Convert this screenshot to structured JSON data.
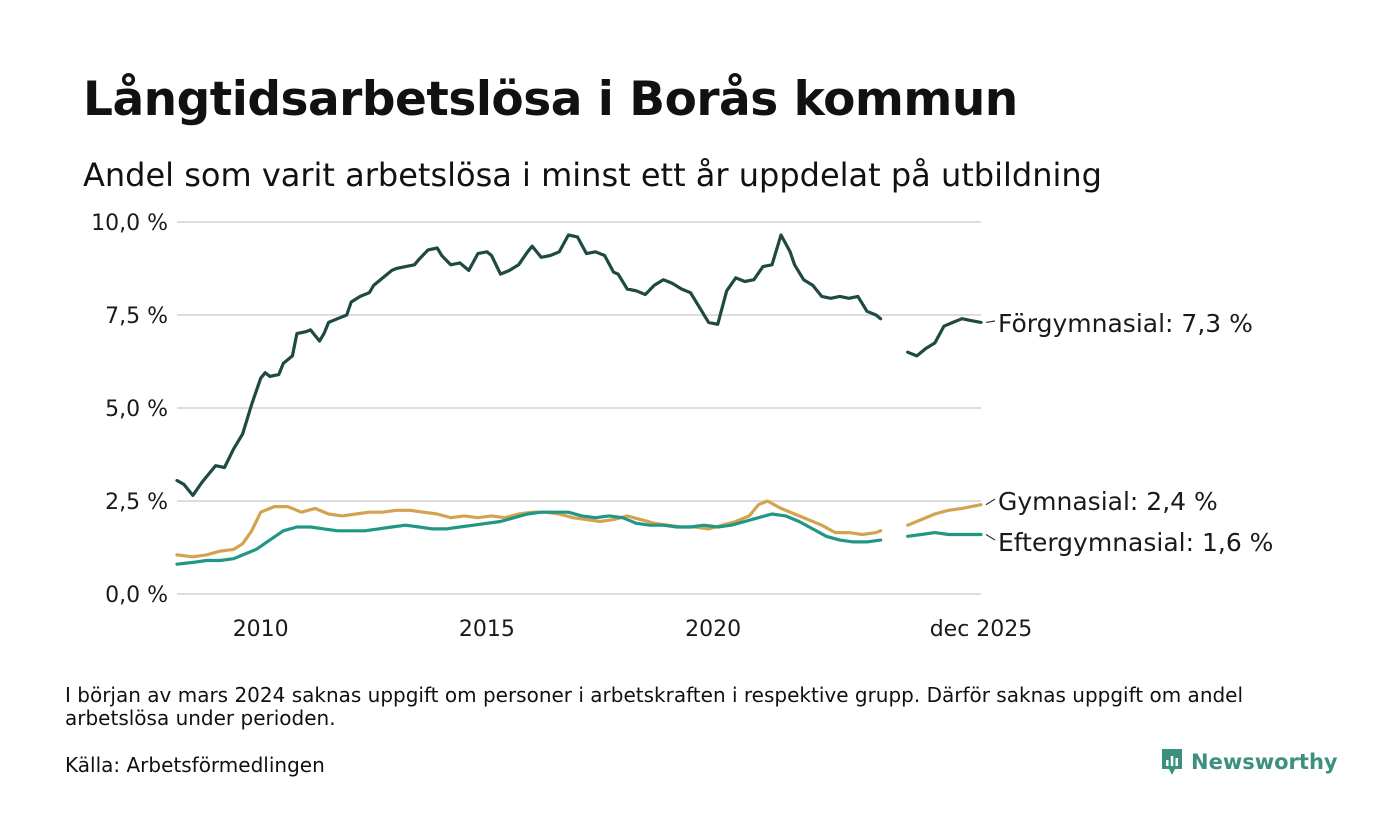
{
  "header": {
    "title": "Långtidsarbetslösa i Borås kommun",
    "subtitle": "Andel som varit arbetslösa i minst ett år uppdelat på utbildning"
  },
  "footer": {
    "note": "I början av mars 2024 saknas uppgift om personer i arbetskraften i respektive grupp. Därför saknas uppgift om andel arbetslösa under perioden.",
    "source": "Källa: Arbetsförmedlingen",
    "brand": "Newsworthy"
  },
  "colors": {
    "forgymnasial": "#1f4a43",
    "gymnasial": "#d3a34f",
    "eftergymnasial": "#1f9784",
    "grid": "#dddddd",
    "brand": "#3d8f80"
  },
  "chart_data": {
    "type": "line",
    "title": "Långtidsarbetslösa i Borås kommun",
    "xlabel": "",
    "ylabel": "",
    "x_unit": "decimal year",
    "xlim": [
      2008.15,
      2025.92
    ],
    "ylim": [
      0,
      10
    ],
    "yticks": [
      0,
      2.5,
      5,
      7.5,
      10
    ],
    "ytick_labels": [
      "0,0 %",
      "2,5 %",
      "5,0 %",
      "7,5 %",
      "10,0 %"
    ],
    "xticks": [
      2010,
      2015,
      2020,
      2025.92
    ],
    "xtick_labels": [
      "2010",
      "2015",
      "2020",
      "dec 2025"
    ],
    "gap": [
      2023.7,
      2024.3
    ],
    "grid": true,
    "series": [
      {
        "name": "Förgymnasial",
        "end_label": "Förgymnasial: 7,3 %",
        "x": [
          2008.15,
          2008.3,
          2008.5,
          2008.7,
          2009.0,
          2009.2,
          2009.4,
          2009.6,
          2009.8,
          2010.0,
          2010.1,
          2010.2,
          2010.4,
          2010.5,
          2010.7,
          2010.8,
          2011.0,
          2011.1,
          2011.3,
          2011.4,
          2011.5,
          2011.7,
          2011.9,
          2012.0,
          2012.2,
          2012.4,
          2012.5,
          2012.7,
          2012.9,
          2013.0,
          2013.2,
          2013.4,
          2013.5,
          2013.7,
          2013.9,
          2014.0,
          2014.2,
          2014.4,
          2014.6,
          2014.8,
          2015.0,
          2015.1,
          2015.3,
          2015.5,
          2015.7,
          2015.9,
          2016.0,
          2016.2,
          2016.4,
          2016.6,
          2016.8,
          2017.0,
          2017.2,
          2017.4,
          2017.6,
          2017.8,
          2017.9,
          2018.1,
          2018.3,
          2018.5,
          2018.7,
          2018.9,
          2019.1,
          2019.3,
          2019.5,
          2019.7,
          2019.9,
          2020.1,
          2020.3,
          2020.5,
          2020.7,
          2020.9,
          2021.1,
          2021.3,
          2021.5,
          2021.7,
          2021.8,
          2022.0,
          2022.2,
          2022.4,
          2022.6,
          2022.8,
          2023.0,
          2023.2,
          2023.4,
          2023.6,
          2023.7,
          2024.3,
          2024.5,
          2024.7,
          2024.9,
          2025.1,
          2025.3,
          2025.5,
          2025.7,
          2025.92
        ],
        "values": [
          3.05,
          2.95,
          2.65,
          3.0,
          3.45,
          3.4,
          3.9,
          4.3,
          5.1,
          5.8,
          5.95,
          5.85,
          5.9,
          6.2,
          6.4,
          7.0,
          7.05,
          7.1,
          6.8,
          7.0,
          7.3,
          7.4,
          7.5,
          7.85,
          8.0,
          8.1,
          8.3,
          8.5,
          8.7,
          8.75,
          8.8,
          8.85,
          9.0,
          9.25,
          9.3,
          9.1,
          8.85,
          8.9,
          8.7,
          9.15,
          9.2,
          9.1,
          8.6,
          8.7,
          8.85,
          9.2,
          9.35,
          9.05,
          9.1,
          9.2,
          9.65,
          9.6,
          9.15,
          9.2,
          9.1,
          8.65,
          8.6,
          8.2,
          8.15,
          8.05,
          8.3,
          8.45,
          8.35,
          8.2,
          8.1,
          7.7,
          7.3,
          7.25,
          8.15,
          8.5,
          8.4,
          8.45,
          8.8,
          8.85,
          9.65,
          9.2,
          8.85,
          8.45,
          8.3,
          8.0,
          7.95,
          8.0,
          7.95,
          8.0,
          7.6,
          7.5,
          7.4,
          6.5,
          6.4,
          6.6,
          6.75,
          7.2,
          7.3,
          7.4,
          7.35,
          7.3
        ]
      },
      {
        "name": "Gymnasial",
        "end_label": "Gymnasial: 2,4 %",
        "x": [
          2008.15,
          2008.5,
          2008.8,
          2009.1,
          2009.4,
          2009.6,
          2009.8,
          2010.0,
          2010.3,
          2010.6,
          2010.9,
          2011.2,
          2011.5,
          2011.8,
          2012.1,
          2012.4,
          2012.7,
          2013.0,
          2013.3,
          2013.6,
          2013.9,
          2014.2,
          2014.5,
          2014.8,
          2015.1,
          2015.4,
          2015.7,
          2016.0,
          2016.3,
          2016.6,
          2016.9,
          2017.2,
          2017.5,
          2017.8,
          2018.1,
          2018.4,
          2018.7,
          2019.0,
          2019.3,
          2019.6,
          2019.9,
          2020.2,
          2020.5,
          2020.8,
          2021.0,
          2021.2,
          2021.5,
          2021.8,
          2022.1,
          2022.4,
          2022.7,
          2023.0,
          2023.3,
          2023.6,
          2023.7,
          2024.3,
          2024.6,
          2024.9,
          2025.2,
          2025.5,
          2025.92
        ],
        "values": [
          1.05,
          1.0,
          1.05,
          1.15,
          1.2,
          1.35,
          1.7,
          2.2,
          2.35,
          2.35,
          2.2,
          2.3,
          2.15,
          2.1,
          2.15,
          2.2,
          2.2,
          2.25,
          2.25,
          2.2,
          2.15,
          2.05,
          2.1,
          2.05,
          2.1,
          2.05,
          2.15,
          2.2,
          2.2,
          2.15,
          2.05,
          2.0,
          1.95,
          2.0,
          2.1,
          2.0,
          1.9,
          1.85,
          1.8,
          1.8,
          1.75,
          1.85,
          1.95,
          2.1,
          2.4,
          2.5,
          2.3,
          2.15,
          2.0,
          1.85,
          1.65,
          1.65,
          1.6,
          1.65,
          1.7,
          1.85,
          2.0,
          2.15,
          2.25,
          2.3,
          2.4
        ]
      },
      {
        "name": "Eftergymnasial",
        "end_label": "Eftergymnasial: 1,6 %",
        "x": [
          2008.15,
          2008.5,
          2008.8,
          2009.1,
          2009.4,
          2009.7,
          2009.9,
          2010.2,
          2010.5,
          2010.8,
          2011.1,
          2011.4,
          2011.7,
          2012.0,
          2012.3,
          2012.6,
          2012.9,
          2013.2,
          2013.5,
          2013.8,
          2014.1,
          2014.4,
          2014.7,
          2015.0,
          2015.3,
          2015.6,
          2015.9,
          2016.2,
          2016.5,
          2016.8,
          2017.1,
          2017.4,
          2017.7,
          2018.0,
          2018.3,
          2018.6,
          2018.9,
          2019.2,
          2019.5,
          2019.8,
          2020.1,
          2020.4,
          2020.7,
          2021.0,
          2021.3,
          2021.6,
          2021.9,
          2022.2,
          2022.5,
          2022.8,
          2023.1,
          2023.4,
          2023.7,
          2024.3,
          2024.6,
          2024.9,
          2025.2,
          2025.5,
          2025.92
        ],
        "values": [
          0.8,
          0.85,
          0.9,
          0.9,
          0.95,
          1.1,
          1.2,
          1.45,
          1.7,
          1.8,
          1.8,
          1.75,
          1.7,
          1.7,
          1.7,
          1.75,
          1.8,
          1.85,
          1.8,
          1.75,
          1.75,
          1.8,
          1.85,
          1.9,
          1.95,
          2.05,
          2.15,
          2.2,
          2.2,
          2.2,
          2.1,
          2.05,
          2.1,
          2.05,
          1.9,
          1.85,
          1.85,
          1.8,
          1.8,
          1.85,
          1.8,
          1.85,
          1.95,
          2.05,
          2.15,
          2.1,
          1.95,
          1.75,
          1.55,
          1.45,
          1.4,
          1.4,
          1.45,
          1.55,
          1.6,
          1.65,
          1.6,
          1.6,
          1.6
        ]
      }
    ]
  }
}
